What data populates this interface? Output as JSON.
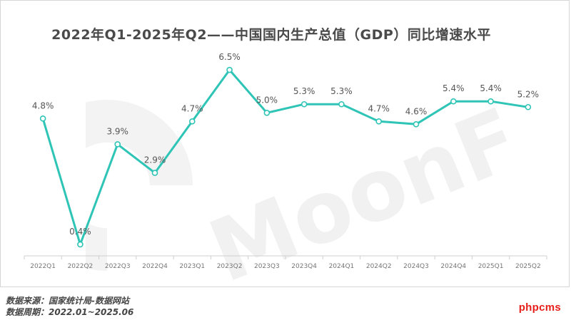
{
  "chart_data": {
    "type": "line",
    "title": "2022年Q1-2025年Q2——中国国内生产总值（GDP）同比增速水平",
    "categories": [
      "2022Q1",
      "2022Q2",
      "2022Q3",
      "2022Q4",
      "2023Q1",
      "2023Q2",
      "2023Q3",
      "2023Q4",
      "2024Q1",
      "2024Q2",
      "2024Q3",
      "2024Q4",
      "2025Q1",
      "2025Q2"
    ],
    "series": [
      {
        "values": [
          4.8,
          0.4,
          3.9,
          2.9,
          4.7,
          6.5,
          5.0,
          5.3,
          5.3,
          4.7,
          4.6,
          5.4,
          5.4,
          5.2
        ]
      }
    ],
    "data_labels": [
      "4.8%",
      "0.4%",
      "3.9%",
      "2.9%",
      "4.7%",
      "6.5%",
      "5.0%",
      "5.3%",
      "5.3%",
      "4.7%",
      "4.6%",
      "5.4%",
      "5.4%",
      "5.2%"
    ],
    "ylim": [
      0,
      7
    ],
    "grid": false,
    "line_color": "#2ec4b6",
    "label_color": "#555555"
  },
  "watermark": "MoonFox",
  "footer": {
    "source": "数据来源：国家统计局-数据网站",
    "period": "数据周期：2022.01~2025.06"
  },
  "brand": "phpcms"
}
